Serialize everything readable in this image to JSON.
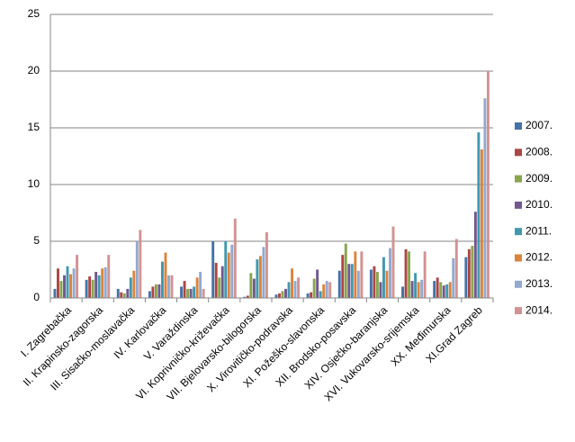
{
  "chart_data": {
    "type": "bar",
    "categories": [
      "I. Zagrebačka",
      "II. Krapinsko-zagorska",
      "III. Sisačko-moslavačka",
      "IV. Karlovačka",
      "V. Varaždinska",
      "VI. Koprivničko-križevačka",
      "VII. Bjelovarsko-bilogorska",
      "X. Virovitičko-podravska",
      "XI. Požeško-slavonska",
      "XII. Brodsko-posavska",
      "XIV. Osječko-baranjska",
      "XVI. Vukovarsko-srijemska",
      "XX. Međimurska",
      "XI.Grad Zagreb"
    ],
    "series": [
      {
        "name": "2007.",
        "color": "#4572a7",
        "values": [
          0.8,
          1.6,
          0.8,
          0.6,
          1.0,
          5.0,
          0.1,
          0.3,
          0.4,
          2.4,
          2.5,
          1.0,
          1.5,
          3.6
        ]
      },
      {
        "name": "2008.",
        "color": "#aa4643",
        "values": [
          2.6,
          1.9,
          0.5,
          1.0,
          1.5,
          3.1,
          0.2,
          0.4,
          0.5,
          3.8,
          2.8,
          4.3,
          1.8,
          4.3
        ]
      },
      {
        "name": "2009.",
        "color": "#89a54e",
        "values": [
          1.5,
          1.6,
          0.4,
          1.2,
          0.8,
          1.8,
          2.2,
          0.6,
          1.7,
          4.8,
          2.3,
          4.1,
          1.4,
          4.6
        ]
      },
      {
        "name": "2010.",
        "color": "#71588f",
        "values": [
          2.0,
          2.3,
          0.8,
          1.2,
          0.8,
          2.8,
          1.7,
          0.8,
          2.5,
          3.0,
          1.4,
          1.5,
          1.1,
          7.6
        ]
      },
      {
        "name": "2011.",
        "color": "#4198af",
        "values": [
          2.8,
          2.0,
          1.8,
          3.2,
          1.0,
          5.0,
          3.4,
          1.4,
          0.6,
          3.0,
          3.6,
          2.2,
          1.2,
          14.6
        ]
      },
      {
        "name": "2012.",
        "color": "#db843d",
        "values": [
          2.1,
          2.6,
          2.4,
          4.0,
          1.8,
          4.0,
          3.7,
          2.6,
          1.2,
          4.1,
          2.4,
          1.4,
          1.4,
          13.1
        ]
      },
      {
        "name": "2013.",
        "color": "#93a9cf",
        "values": [
          2.6,
          2.7,
          5.0,
          2.0,
          2.3,
          4.7,
          4.5,
          1.5,
          1.5,
          2.4,
          4.4,
          1.6,
          3.5,
          17.6
        ]
      },
      {
        "name": "2014.",
        "color": "#d19392",
        "values": [
          3.8,
          3.8,
          6.0,
          2.0,
          0.8,
          7.0,
          5.8,
          1.8,
          1.4,
          4.1,
          6.3,
          4.1,
          5.2,
          20.0
        ]
      }
    ],
    "ylim": [
      0,
      25
    ],
    "yticks": [
      0,
      5,
      10,
      15,
      20,
      25
    ],
    "grid": true,
    "legend": "right"
  }
}
